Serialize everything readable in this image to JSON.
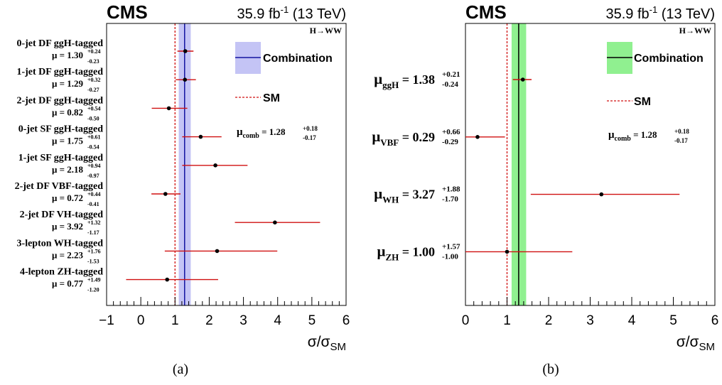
{
  "chart_data": [
    {
      "type": "scatter",
      "panel_label": "(a)",
      "experiment": "CMS",
      "lumi": "35.9 fb",
      "lumi_sup": "-1",
      "energy": " (13 TeV)",
      "process": "H→WW",
      "xlabel_main": "σ/σ",
      "xlabel_sub": "SM",
      "xlim": [
        -1,
        6
      ],
      "xticks": [
        -1,
        0,
        1,
        2,
        3,
        4,
        5,
        6
      ],
      "xtick_labels": [
        "−1",
        "0",
        "1",
        "2",
        "3",
        "4",
        "5",
        "6"
      ],
      "sm_value": 1.0,
      "combination": {
        "value": 1.28,
        "band": [
          1.11,
          1.46
        ],
        "plus": "+0.18",
        "minus": "-0.17",
        "label_mu": "μ",
        "label_sub": "comb",
        "label_eq": " = 1.28"
      },
      "legend": [
        {
          "label": "Combination",
          "style": "band-line"
        },
        {
          "label": "SM",
          "style": "dashed"
        }
      ],
      "categories": [
        {
          "name": "0-jet DF ggH-tagged",
          "value": 1.3,
          "lo": 1.07,
          "hi": 1.54,
          "text": "μ = 1.30",
          "plus": "+0.24",
          "minus": "-0.23"
        },
        {
          "name": "1-jet DF ggH-tagged",
          "value": 1.29,
          "lo": 1.02,
          "hi": 1.61,
          "text": "μ = 1.29",
          "plus": "+0.32",
          "minus": "-0.27"
        },
        {
          "name": "2-jet DF ggH-tagged",
          "value": 0.82,
          "lo": 0.32,
          "hi": 1.36,
          "text": "μ = 0.82",
          "plus": "+0.54",
          "minus": "-0.50"
        },
        {
          "name": "0-jet SF ggH-tagged",
          "value": 1.75,
          "lo": 1.21,
          "hi": 2.36,
          "text": "μ = 1.75",
          "plus": "+0.61",
          "minus": "-0.54"
        },
        {
          "name": "1-jet SF ggH-tagged",
          "value": 2.18,
          "lo": 1.21,
          "hi": 3.12,
          "text": "μ = 2.18",
          "plus": "+0.94",
          "minus": "-0.97"
        },
        {
          "name": "2-jet DF VBF-tagged",
          "value": 0.72,
          "lo": 0.31,
          "hi": 1.16,
          "text": "μ = 0.72",
          "plus": "+0.44",
          "minus": "-0.41"
        },
        {
          "name": "2-jet DF VH-tagged",
          "value": 3.92,
          "lo": 2.75,
          "hi": 5.24,
          "text": "μ = 3.92",
          "plus": "+1.32",
          "minus": "-1.17"
        },
        {
          "name": "3-lepton WH-tagged",
          "value": 2.23,
          "lo": 0.7,
          "hi": 3.99,
          "text": "μ = 2.23",
          "plus": "+1.76",
          "minus": "-1.53"
        },
        {
          "name": "4-lepton ZH-tagged",
          "value": 0.77,
          "lo": -0.43,
          "hi": 2.26,
          "text": "μ = 0.77",
          "plus": "+1.49",
          "minus": "-1.20"
        }
      ],
      "colors": {
        "band": "#c4c4f5",
        "line": "#1414a0",
        "err": "#d01010",
        "sm": "#d01010"
      }
    },
    {
      "type": "scatter",
      "panel_label": "(b)",
      "experiment": "CMS",
      "lumi": "35.9 fb",
      "lumi_sup": "-1",
      "energy": " (13 TeV)",
      "process": "H→WW",
      "xlabel_main": "σ/σ",
      "xlabel_sub": "SM",
      "xlim": [
        0,
        6
      ],
      "xticks": [
        0,
        1,
        2,
        3,
        4,
        5,
        6
      ],
      "xtick_labels": [
        "0",
        "1",
        "2",
        "3",
        "4",
        "5",
        "6"
      ],
      "sm_value": 1.0,
      "combination": {
        "value": 1.28,
        "band": [
          1.11,
          1.46
        ],
        "plus": "+0.18",
        "minus": "-0.17",
        "label_mu": "μ",
        "label_sub": "comb",
        "label_eq": " = 1.28"
      },
      "legend": [
        {
          "label": "Combination",
          "style": "band-line"
        },
        {
          "label": "SM",
          "style": "dashed"
        }
      ],
      "categories": [
        {
          "name_mu": "μ",
          "name_sub": "ggH",
          "name_eq": " = 1.38",
          "value": 1.38,
          "lo": 1.14,
          "hi": 1.59,
          "plus": "+0.21",
          "minus": "-0.24"
        },
        {
          "name_mu": "μ",
          "name_sub": "VBF",
          "name_eq": " = 0.29",
          "value": 0.29,
          "lo": 0.0,
          "hi": 0.95,
          "plus": "+0.66",
          "minus": "-0.29"
        },
        {
          "name_mu": "μ",
          "name_sub": "WH",
          "name_eq": " = 3.27",
          "value": 3.27,
          "lo": 1.57,
          "hi": 5.15,
          "plus": "+1.88",
          "minus": "-1.70"
        },
        {
          "name_mu": "μ",
          "name_sub": "ZH",
          "name_eq": " = 1.00",
          "value": 1.0,
          "lo": 0.0,
          "hi": 2.57,
          "plus": "+1.57",
          "minus": "-1.00"
        }
      ],
      "colors": {
        "band": "#90f090",
        "line": "#000000",
        "err": "#d01010",
        "sm": "#d01010"
      }
    }
  ]
}
